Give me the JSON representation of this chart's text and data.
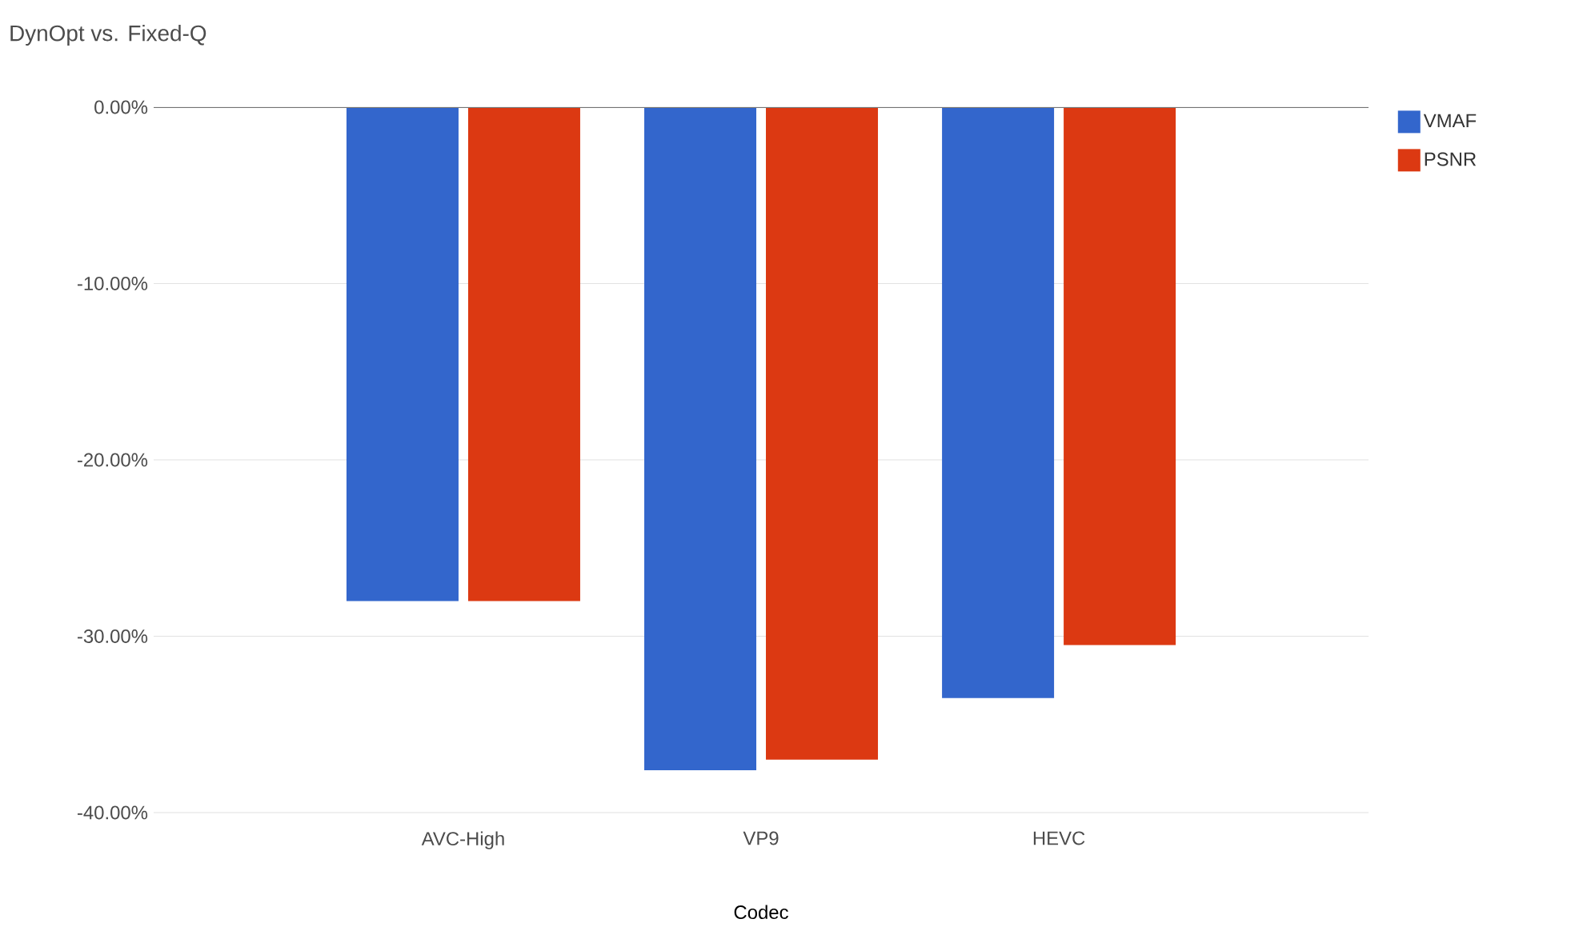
{
  "chart_data": {
    "type": "bar",
    "title": "DynOpt vs. Fixed-Q",
    "xlabel": "Codec",
    "categories": [
      "AVC-High",
      "VP9",
      "HEVC"
    ],
    "series": [
      {
        "name": "VMAF",
        "color": "#3366cc",
        "values": [
          -28.0,
          -37.6,
          -33.5
        ]
      },
      {
        "name": "PSNR",
        "color": "#dc3912",
        "values": [
          -28.0,
          -37.0,
          -30.5
        ]
      }
    ],
    "ylim": [
      -40,
      0
    ],
    "yticks": [
      {
        "value": -40,
        "label": "-40.00%"
      },
      {
        "value": -30,
        "label": "-30.00%"
      },
      {
        "value": -20,
        "label": "-20.00%"
      },
      {
        "value": -10,
        "label": "-10.00%"
      },
      {
        "value": 0,
        "label": "0.00%"
      }
    ],
    "grid": "y",
    "legend": "top right"
  }
}
